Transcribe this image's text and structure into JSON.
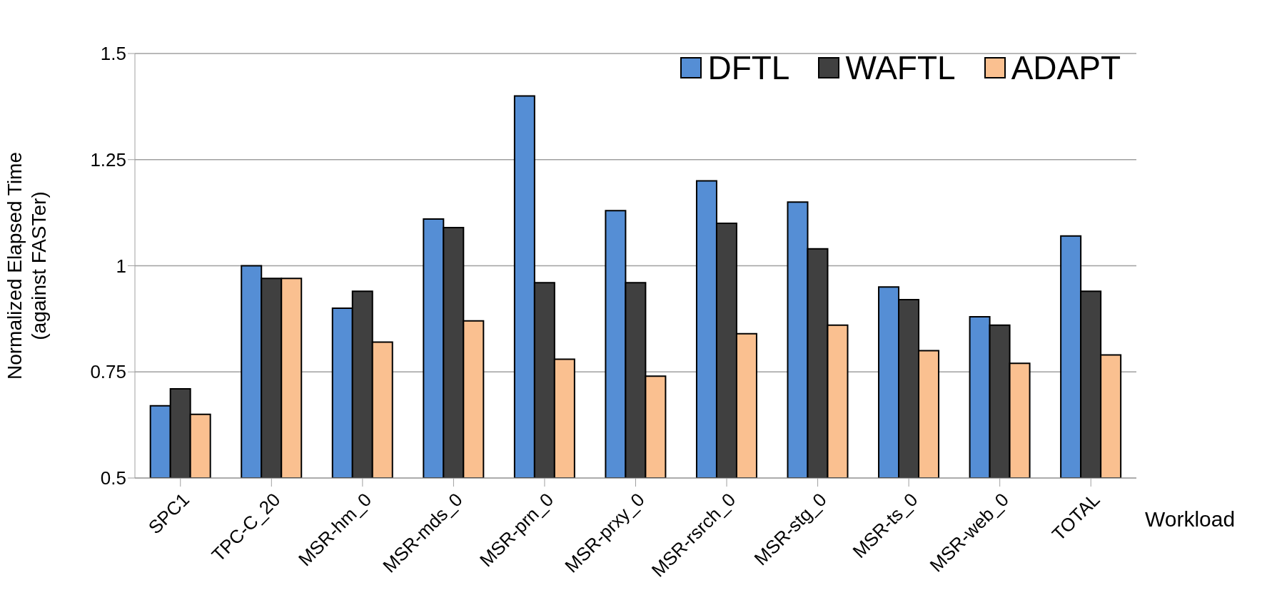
{
  "chart_data": {
    "type": "bar",
    "ylabel": "Normalized Elapsed Time\n(against FASTer)",
    "xlabel": "Workload",
    "categories": [
      "SPC1",
      "TPC-C_20",
      "MSR-hm_0",
      "MSR-mds_0",
      "MSR-prn_0",
      "MSR-prxy_0",
      "MSR-rsrch_0",
      "MSR-stg_0",
      "MSR-ts_0",
      "MSR-web_0",
      "TOTAL"
    ],
    "series": [
      {
        "name": "DFTL",
        "color": "#558ed5",
        "values": [
          0.67,
          1.0,
          0.9,
          1.11,
          1.4,
          1.13,
          1.2,
          1.15,
          0.95,
          0.88,
          1.07
        ]
      },
      {
        "name": "WAFTL",
        "color": "#404040",
        "values": [
          0.71,
          0.97,
          0.94,
          1.09,
          0.96,
          0.96,
          1.1,
          1.04,
          0.92,
          0.86,
          0.94
        ]
      },
      {
        "name": "ADAPT",
        "color": "#fac090",
        "values": [
          0.65,
          0.97,
          0.82,
          0.87,
          0.78,
          0.74,
          0.84,
          0.86,
          0.8,
          0.77,
          0.79
        ]
      }
    ],
    "ylim": [
      0.5,
      1.5
    ],
    "yticks": [
      0.5,
      0.75,
      1,
      1.25,
      1.5
    ],
    "grid": "y",
    "legend": "top right"
  }
}
